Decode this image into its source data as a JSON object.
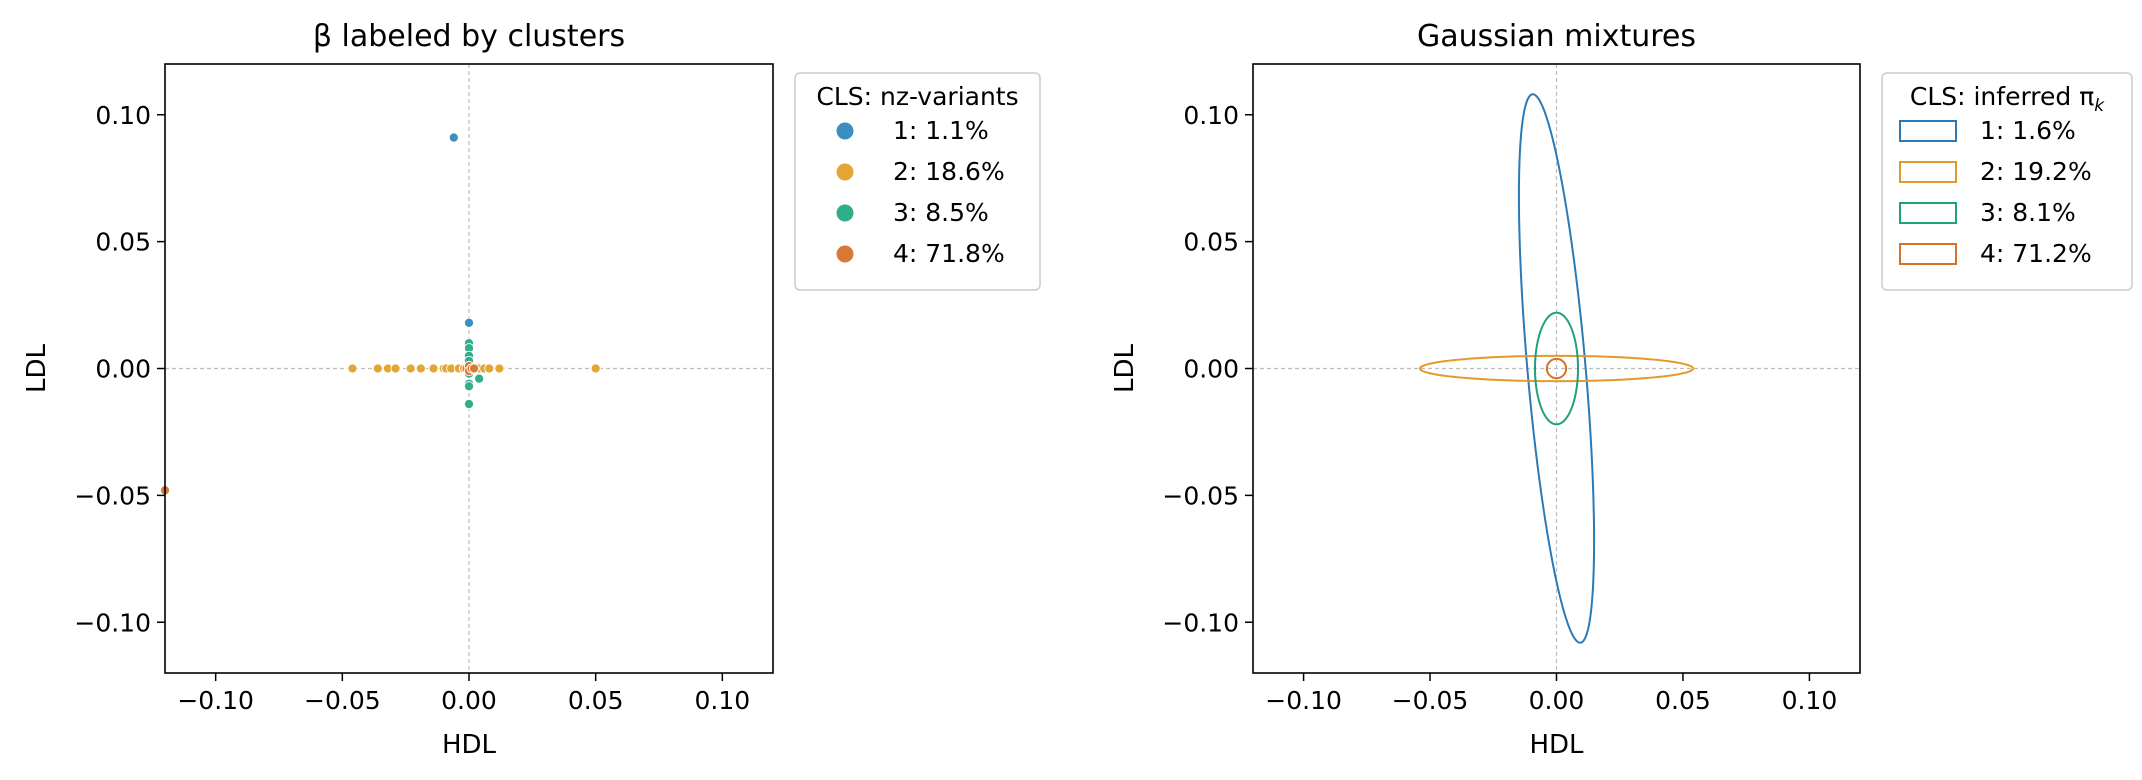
{
  "chart_data": [
    {
      "type": "scatter",
      "title": "β labeled by clusters",
      "xlabel": "HDL",
      "ylabel": "LDL",
      "xlim": [
        -0.12,
        0.12
      ],
      "ylim": [
        -0.12,
        0.12
      ],
      "xticks": [
        "−0.10",
        "−0.05",
        "0.00",
        "0.05",
        "0.10"
      ],
      "yticks": [
        "0.10",
        "0.05",
        "0.00",
        "−0.05",
        "−0.10"
      ],
      "tick_values": [
        -0.1,
        -0.05,
        0,
        0.05,
        0.1
      ],
      "grid": false,
      "reference_lines": [
        0,
        0
      ],
      "legend": {
        "title": "CLS: nz-variants",
        "placement": "outside-right",
        "entries": [
          "1: 1.1%",
          "2: 18.6%",
          "3: 8.5%",
          "4: 71.8%"
        ]
      },
      "series": [
        {
          "color": "#3a8fc0",
          "points": [
            [
              -0.006,
              0.091
            ],
            [
              0.0,
              0.018
            ],
            [
              0.0,
              0.0
            ]
          ]
        },
        {
          "color": "#e3a634",
          "points": [
            [
              -0.046,
              0.0
            ],
            [
              -0.036,
              0.0
            ],
            [
              -0.032,
              0.0
            ],
            [
              -0.029,
              0.0
            ],
            [
              -0.023,
              0.0
            ],
            [
              -0.019,
              0.0
            ],
            [
              -0.014,
              0.0
            ],
            [
              -0.01,
              0.0
            ],
            [
              -0.009,
              0.0
            ],
            [
              -0.007,
              0.0
            ],
            [
              -0.004,
              0.0
            ],
            [
              -0.002,
              0.0
            ],
            [
              0.002,
              0.0
            ],
            [
              0.004,
              0.0
            ],
            [
              0.006,
              0.0
            ],
            [
              0.008,
              0.0
            ],
            [
              0.012,
              0.0
            ],
            [
              0.05,
              0.0
            ]
          ]
        },
        {
          "color": "#2fae8a",
          "points": [
            [
              0.0,
              0.01
            ],
            [
              0.0,
              0.008
            ],
            [
              0.0,
              0.005
            ],
            [
              0.0,
              0.003
            ],
            [
              0.0,
              0.001
            ],
            [
              0.0,
              -0.002
            ],
            [
              0.0,
              -0.006
            ],
            [
              0.0,
              -0.007
            ],
            [
              0.004,
              -0.004
            ],
            [
              0.0,
              -0.014
            ]
          ]
        },
        {
          "color": "#d87a34",
          "points": [
            [
              -0.12,
              -0.048
            ],
            [
              -0.001,
              0.0
            ],
            [
              0.0,
              0.001
            ],
            [
              0.0,
              -0.001
            ],
            [
              0.001,
              0.0
            ],
            [
              0.002,
              0.0
            ]
          ]
        }
      ]
    },
    {
      "type": "ellipse",
      "title": "Gaussian mixtures",
      "xlabel": "HDL",
      "ylabel": "LDL",
      "xlim": [
        -0.12,
        0.12
      ],
      "ylim": [
        -0.12,
        0.12
      ],
      "xticks": [
        "−0.10",
        "−0.05",
        "0.00",
        "0.05",
        "0.10"
      ],
      "yticks": [
        "0.10",
        "0.05",
        "0.00",
        "−0.05",
        "−0.10"
      ],
      "tick_values": [
        -0.1,
        -0.05,
        0,
        0.05,
        0.1
      ],
      "grid": false,
      "reference_lines": [
        0,
        0
      ],
      "legend": {
        "title": "CLS: inferred π",
        "title_subscript": "k",
        "placement": "outside-right",
        "entries": [
          "1: 1.6%",
          "2: 19.2%",
          "3: 8.1%",
          "4: 71.2%"
        ]
      },
      "series": [
        {
          "color": "#2a7ab8",
          "center": [
            0,
            0
          ],
          "semi_major": 0.1085,
          "semi_minor": 0.0115,
          "angle_deg": -85
        },
        {
          "color": "#e39a2a",
          "center": [
            0,
            0
          ],
          "semi_major": 0.054,
          "semi_minor": 0.005,
          "angle_deg": 0
        },
        {
          "color": "#1fa07f",
          "center": [
            0,
            0
          ],
          "semi_major": 0.022,
          "semi_minor": 0.0085,
          "angle_deg": 90
        },
        {
          "color": "#d4722a",
          "center": [
            0,
            0
          ],
          "semi_major": 0.0038,
          "semi_minor": 0.0038,
          "angle_deg": 0
        }
      ]
    }
  ]
}
